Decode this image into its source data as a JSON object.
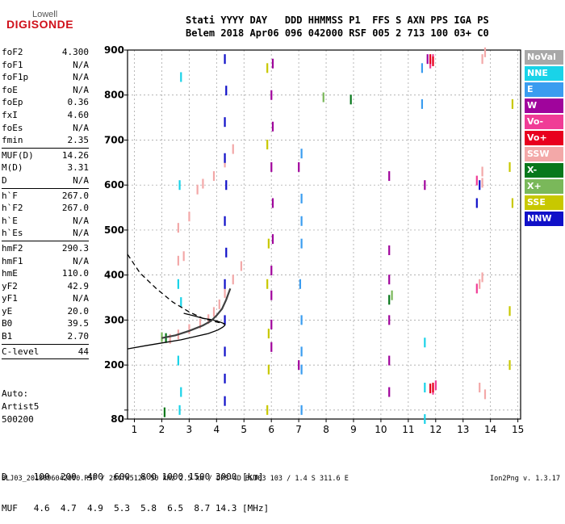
{
  "logo": {
    "top": "Lowell",
    "main": "DIGISONDE"
  },
  "header": {
    "line1": "Stati YYYY DAY   DDD HHMMSS P1  FFS S AXN PPS IGA PS",
    "line2": "Belem 2018 Apr06 096 042000 RSF 005 2 713 100 03+ C0"
  },
  "params": [
    {
      "label": "foF2",
      "value": "4.300"
    },
    {
      "label": "foF1",
      "value": "N/A"
    },
    {
      "label": "foF1p",
      "value": "N/A"
    },
    {
      "label": "foE",
      "value": "N/A"
    },
    {
      "label": "foEp",
      "value": "0.36"
    },
    {
      "label": "fxI",
      "value": "4.60"
    },
    {
      "label": "foEs",
      "value": "N/A"
    },
    {
      "label": "fmin",
      "value": "2.35"
    },
    {
      "sep": true
    },
    {
      "label": "MUF(D)",
      "value": "14.26"
    },
    {
      "label": "M(D)",
      "value": "3.31"
    },
    {
      "label": "D",
      "value": "N/A"
    },
    {
      "sep": true
    },
    {
      "label": "h`F",
      "value": "267.0"
    },
    {
      "label": "h`F2",
      "value": "267.0"
    },
    {
      "label": "h`E",
      "value": "N/A"
    },
    {
      "label": "h`Es",
      "value": "N/A"
    },
    {
      "sep": true
    },
    {
      "label": "hmF2",
      "value": "290.3"
    },
    {
      "label": "hmF1",
      "value": "N/A"
    },
    {
      "label": "hmE",
      "value": "110.0"
    },
    {
      "label": "yF2",
      "value": "42.9"
    },
    {
      "label": "yF1",
      "value": "N/A"
    },
    {
      "label": "yE",
      "value": "20.0"
    },
    {
      "label": "B0",
      "value": "39.5"
    },
    {
      "label": "B1",
      "value": "2.70"
    },
    {
      "sep": true
    },
    {
      "label": "C-level",
      "value": "44"
    },
    {
      "sep": true
    }
  ],
  "auto": {
    "line1": "Auto:",
    "line2": "Artist5",
    "line3": "500200"
  },
  "legend": [
    {
      "label": "NoVal",
      "color": "#a8a8a8"
    },
    {
      "label": "NNE",
      "color": "#19d3e8"
    },
    {
      "label": "E",
      "color": "#3a9cf0"
    },
    {
      "label": "W",
      "color": "#a0049c"
    },
    {
      "label": "Vo-",
      "color": "#f03c96"
    },
    {
      "label": "Vo+",
      "color": "#e8001e"
    },
    {
      "label": "SSW",
      "color": "#f3a8a8"
    },
    {
      "label": "X-",
      "color": "#08781c"
    },
    {
      "label": "X+",
      "color": "#7ab85a"
    },
    {
      "label": "SSE",
      "color": "#c8c800"
    },
    {
      "label": "NNW",
      "color": "#1010c8"
    }
  ],
  "dmuf": {
    "d_line": "D     100  200  400  600  800 1000 1500 3000 [km]",
    "muf_line": "MUF   4.6  4.7  4.9  5.3  5.8  6.5  8.7 14.3 [MHz]"
  },
  "footer": {
    "left": "BLJ03_2018096042000.RSF / 284fx512h 50 kHz 2.5 km / DPS-4D BLJ03 103 / 1.4 S 311.6 E",
    "right": "Ion2Png v. 1.3.17"
  },
  "chart_data": {
    "type": "scatter",
    "xlim": [
      0.75,
      15.1
    ],
    "ylim": [
      80,
      900
    ],
    "x_ticks": [
      1,
      2,
      3,
      4,
      5,
      6,
      7,
      8,
      9,
      10,
      11,
      12,
      13,
      14,
      15
    ],
    "y_ticks": [
      80,
      100,
      200,
      300,
      400,
      500,
      600,
      700,
      800,
      900
    ],
    "y_tick_labels": [
      "80",
      "",
      "200",
      "300",
      "400",
      "500",
      "600",
      "700",
      "800",
      "900"
    ],
    "grid": true,
    "series": [
      {
        "name": "SSW",
        "color": "#f3a8a8",
        "points": [
          [
            2.3,
            258
          ],
          [
            2.6,
            268
          ],
          [
            3.0,
            280
          ],
          [
            3.4,
            292
          ],
          [
            3.7,
            302
          ],
          [
            3.9,
            318
          ],
          [
            4.1,
            335
          ],
          [
            4.3,
            360
          ],
          [
            4.6,
            390
          ],
          [
            4.9,
            420
          ],
          [
            2.6,
            432
          ],
          [
            2.8,
            442
          ],
          [
            3.3,
            590
          ],
          [
            3.5,
            603
          ],
          [
            3.9,
            620
          ],
          [
            4.3,
            650
          ],
          [
            4.6,
            680
          ],
          [
            2.6,
            505
          ],
          [
            3.0,
            530
          ],
          [
            13.7,
            605
          ],
          [
            13.7,
            630
          ],
          [
            13.6,
            380
          ],
          [
            13.7,
            395
          ],
          [
            13.6,
            150
          ],
          [
            13.8,
            135
          ],
          [
            13.7,
            880
          ],
          [
            13.8,
            895
          ]
        ]
      },
      {
        "name": "W",
        "color": "#a0049c",
        "points": [
          [
            6.0,
            240
          ],
          [
            6.0,
            290
          ],
          [
            6.0,
            355
          ],
          [
            6.0,
            410
          ],
          [
            6.05,
            480
          ],
          [
            6.05,
            560
          ],
          [
            6.0,
            640
          ],
          [
            6.05,
            730
          ],
          [
            6.0,
            800
          ],
          [
            6.05,
            870
          ],
          [
            10.3,
            140
          ],
          [
            10.3,
            210
          ],
          [
            10.3,
            300
          ],
          [
            10.3,
            390
          ],
          [
            10.3,
            455
          ],
          [
            10.3,
            620
          ],
          [
            11.6,
            600
          ],
          [
            11.7,
            880
          ],
          [
            7.0,
            200
          ],
          [
            7.0,
            640
          ]
        ]
      },
      {
        "name": "NNW",
        "color": "#1010c8",
        "points": [
          [
            4.3,
            120
          ],
          [
            4.3,
            170
          ],
          [
            4.3,
            230
          ],
          [
            4.3,
            300
          ],
          [
            4.3,
            380
          ],
          [
            4.35,
            450
          ],
          [
            4.3,
            520
          ],
          [
            4.35,
            600
          ],
          [
            4.3,
            660
          ],
          [
            4.3,
            740
          ],
          [
            4.35,
            810
          ],
          [
            4.3,
            880
          ],
          [
            13.5,
            560
          ],
          [
            13.6,
            600
          ]
        ]
      },
      {
        "name": "E",
        "color": "#3a9cf0",
        "points": [
          [
            7.1,
            100
          ],
          [
            7.1,
            190
          ],
          [
            7.1,
            230
          ],
          [
            7.1,
            300
          ],
          [
            7.05,
            380
          ],
          [
            7.1,
            470
          ],
          [
            7.1,
            520
          ],
          [
            7.1,
            570
          ],
          [
            7.1,
            670
          ],
          [
            11.5,
            860
          ],
          [
            11.5,
            780
          ]
        ]
      },
      {
        "name": "NNE",
        "color": "#19d3e8",
        "points": [
          [
            2.65,
            100
          ],
          [
            2.7,
            140
          ],
          [
            2.6,
            210
          ],
          [
            2.7,
            340
          ],
          [
            2.6,
            380
          ],
          [
            2.65,
            600
          ],
          [
            2.7,
            840
          ],
          [
            11.6,
            80
          ],
          [
            11.6,
            150
          ],
          [
            11.6,
            250
          ]
        ]
      },
      {
        "name": "SSE",
        "color": "#c8c800",
        "points": [
          [
            5.85,
            100
          ],
          [
            5.9,
            190
          ],
          [
            5.9,
            270
          ],
          [
            5.85,
            380
          ],
          [
            5.9,
            470
          ],
          [
            5.85,
            690
          ],
          [
            5.85,
            860
          ],
          [
            14.7,
            200
          ],
          [
            14.7,
            320
          ],
          [
            14.8,
            560
          ],
          [
            14.7,
            640
          ],
          [
            14.8,
            780
          ]
        ]
      },
      {
        "name": "Vo-",
        "color": "#f03c96",
        "points": [
          [
            11.9,
            145
          ],
          [
            12.0,
            155
          ],
          [
            11.8,
            870
          ],
          [
            11.9,
            880
          ],
          [
            13.5,
            370
          ],
          [
            13.5,
            610
          ]
        ]
      },
      {
        "name": "Vo+",
        "color": "#e8001e",
        "points": [
          [
            11.8,
            148
          ],
          [
            11.9,
            150
          ],
          [
            11.8,
            880
          ],
          [
            11.9,
            875
          ]
        ]
      },
      {
        "name": "X-",
        "color": "#08781c",
        "points": [
          [
            2.1,
            95
          ],
          [
            2.15,
            260
          ],
          [
            8.9,
            790
          ],
          [
            10.3,
            345
          ]
        ]
      },
      {
        "name": "X+",
        "color": "#7ab85a",
        "points": [
          [
            2.0,
            262
          ],
          [
            7.9,
            795
          ],
          [
            10.4,
            355
          ]
        ]
      }
    ],
    "curves": [
      {
        "name": "profile-solid",
        "style": "solid",
        "points": [
          [
            0.75,
            236
          ],
          [
            1.4,
            243
          ],
          [
            2.0,
            249
          ],
          [
            2.7,
            256
          ],
          [
            3.2,
            263
          ],
          [
            3.7,
            270
          ],
          [
            4.05,
            278
          ],
          [
            4.22,
            284
          ],
          [
            4.3,
            288
          ],
          [
            4.3,
            291
          ],
          [
            4.2,
            294
          ],
          [
            4.0,
            298
          ],
          [
            3.8,
            301
          ],
          [
            3.5,
            304
          ],
          [
            3.2,
            309
          ],
          [
            2.8,
            315
          ]
        ]
      },
      {
        "name": "profile-dashed",
        "style": "dashed",
        "points": [
          [
            0.75,
            446
          ],
          [
            1.2,
            405
          ],
          [
            1.8,
            370
          ],
          [
            2.4,
            340
          ],
          [
            3.0,
            318
          ],
          [
            3.5,
            304
          ],
          [
            3.9,
            297
          ],
          [
            4.2,
            293
          ],
          [
            4.3,
            291
          ]
        ]
      },
      {
        "name": "trace",
        "style": "solid-dark",
        "points": [
          [
            2.0,
            260
          ],
          [
            2.5,
            266
          ],
          [
            3.0,
            276
          ],
          [
            3.5,
            288
          ],
          [
            3.8,
            298
          ],
          [
            4.0,
            310
          ],
          [
            4.2,
            325
          ],
          [
            4.35,
            345
          ],
          [
            4.5,
            370
          ]
        ]
      }
    ]
  }
}
